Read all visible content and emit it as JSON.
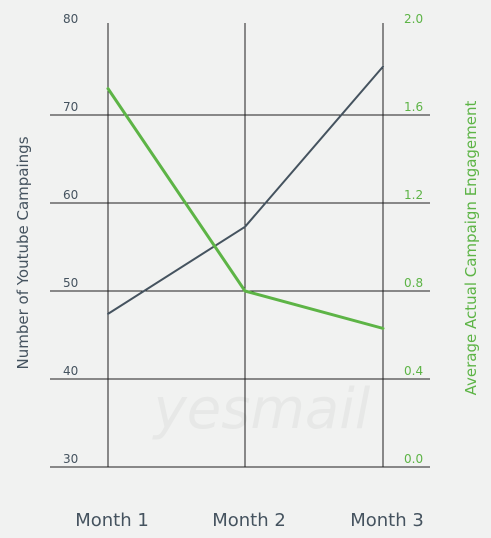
{
  "chart_data": {
    "type": "line",
    "categories": [
      "Month 1",
      "Month 2",
      "Month 3"
    ],
    "ylabel": "Number of Youtube Campaings",
    "y2label": "Average Actual Campaign Engagement",
    "ylim": [
      30,
      80
    ],
    "y2lim": [
      0.0,
      2.0
    ],
    "yticks": [
      "80",
      "70",
      "60",
      "50",
      "40",
      "30"
    ],
    "y2ticks": [
      "2.0",
      "1.6",
      "1.2",
      "0.8",
      "0.4",
      "0.0"
    ],
    "grid": true,
    "watermark": "yesmail",
    "series": [
      {
        "axis": "left",
        "color": "#45535f",
        "values": [
          47.4,
          57.3,
          75.5
        ]
      },
      {
        "axis": "right",
        "color": "#5db446",
        "values": [
          1.72,
          0.8,
          0.63
        ]
      }
    ]
  }
}
